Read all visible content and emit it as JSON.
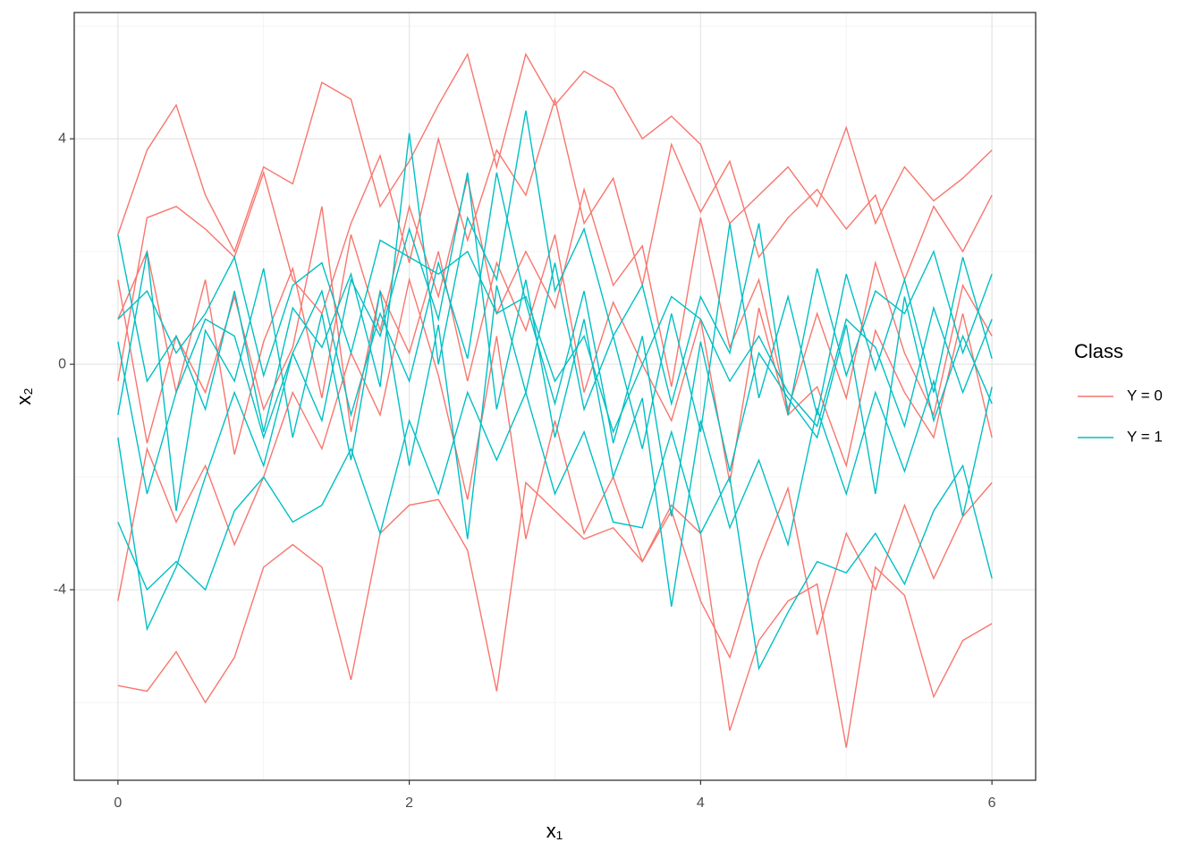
{
  "chart_data": {
    "type": "line",
    "xlabel": "x₁",
    "ylabel": "x₂",
    "legend_title": "Class",
    "legend_position": "right",
    "grid": true,
    "xlim": [
      -0.3,
      6.3
    ],
    "ylim": [
      -7.38,
      6.24
    ],
    "xticks": [
      0,
      2,
      4,
      6
    ],
    "yticks": [
      -4,
      0,
      4
    ],
    "xminor": [
      1,
      3,
      5
    ],
    "yminor": [
      -6,
      -2,
      2,
      6
    ],
    "x": [
      0,
      0.2,
      0.4,
      0.6,
      0.8,
      1,
      1.2,
      1.4,
      1.6,
      1.8,
      2,
      2.2,
      2.4,
      2.6,
      2.8,
      3,
      3.2,
      3.4,
      3.6,
      3.8,
      4,
      4.2,
      4.4,
      4.6,
      4.8,
      5,
      5.2,
      5.4,
      5.6,
      5.8,
      6
    ],
    "series": [
      {
        "name": "Y = 0",
        "color": "#f8766d",
        "values": [
          2.3,
          3.8,
          4.6,
          3.0,
          2.0,
          3.5,
          3.2,
          5.0,
          4.7,
          2.8,
          3.6,
          4.6,
          5.5,
          3.5,
          5.5,
          4.6,
          5.2,
          4.9,
          4.0,
          4.4,
          3.9,
          2.5,
          3.0,
          3.5,
          2.8,
          4.2,
          2.5,
          3.5,
          2.9,
          3.3,
          3.8
        ]
      },
      {
        "name": "Y = 0",
        "color": "#f8766d",
        "values": [
          -5.7,
          -5.8,
          -5.1,
          -6.0,
          -5.2,
          -3.6,
          -3.2,
          -3.6,
          -5.6,
          -3.0,
          -2.5,
          -2.4,
          -3.3,
          -5.8,
          -2.1,
          -2.6,
          -3.1,
          -2.9,
          -3.5,
          -2.5,
          -3.0,
          -6.5,
          -4.9,
          -4.2,
          -3.9,
          -6.8,
          -3.6,
          -4.1,
          -5.9,
          -4.9,
          -4.6
        ]
      },
      {
        "name": "Y = 0",
        "color": "#f8766d",
        "values": [
          1.5,
          -1.4,
          0.5,
          -0.5,
          1.2,
          -0.8,
          0.3,
          2.8,
          -1.2,
          1.3,
          0.2,
          2.0,
          -0.3,
          1.8,
          0.6,
          2.3,
          -0.5,
          1.1,
          0,
          -1.0,
          0.8,
          -2.1,
          1.0,
          -0.9,
          -0.4,
          -1.8,
          0.6,
          -0.5,
          -1.3,
          0.9,
          -1.3
        ]
      },
      {
        "name": "Y = 0",
        "color": "#f8766d",
        "values": [
          -4.2,
          -1.5,
          -2.8,
          -1.8,
          -3.2,
          -2.0,
          -0.5,
          -1.5,
          0.2,
          -0.9,
          1.5,
          -0.2,
          -2.4,
          0.5,
          -3.1,
          -1.0,
          -3.0,
          -2.0,
          -3.5,
          -2.6,
          -4.2,
          -5.2,
          -3.5,
          -2.2,
          -4.8,
          -3.0,
          -4.0,
          -2.5,
          -3.8,
          -2.7,
          -2.1
        ]
      },
      {
        "name": "Y = 0",
        "color": "#f8766d",
        "values": [
          0.8,
          2.0,
          -0.5,
          1.5,
          -1.6,
          0.4,
          1.7,
          -0.6,
          2.3,
          0.6,
          2.8,
          1.2,
          3.3,
          0.9,
          2.0,
          1.0,
          3.1,
          1.4,
          2.1,
          -0.4,
          2.6,
          0.3,
          1.5,
          -0.8,
          0.9,
          -0.6,
          1.8,
          0.2,
          -0.9,
          1.4,
          0.5
        ]
      },
      {
        "name": "Y = 0",
        "color": "#f8766d",
        "values": [
          -0.3,
          2.6,
          2.8,
          2.4,
          1.9,
          3.4,
          1.5,
          0.9,
          2.5,
          3.7,
          1.8,
          4.0,
          2.2,
          3.8,
          3.0,
          4.7,
          2.5,
          3.3,
          1.4,
          3.9,
          2.7,
          3.6,
          1.9,
          2.6,
          3.1,
          2.4,
          3.0,
          1.5,
          2.8,
          2.0,
          3.0
        ]
      },
      {
        "name": "Y = 1",
        "color": "#00bfc4",
        "values": [
          2.3,
          -0.3,
          0.5,
          -0.8,
          1.3,
          -1.2,
          1.0,
          0.3,
          1.6,
          -0.4,
          4.1,
          0,
          2.6,
          1.5,
          4.5,
          1.3,
          2.4,
          0.5,
          1.4,
          -0.7,
          1.2,
          0.2,
          2.5,
          -0.9,
          1.7,
          -0.2,
          1.3,
          0.9,
          2.0,
          0.2,
          1.6
        ]
      },
      {
        "name": "Y = 1",
        "color": "#00bfc4",
        "values": [
          -2.8,
          -4.0,
          -3.5,
          -4.0,
          -2.6,
          -2.0,
          -2.8,
          -2.5,
          -1.5,
          -3.0,
          -1.0,
          -2.3,
          -0.5,
          -1.7,
          -0.5,
          -2.3,
          -1.2,
          -2.8,
          -2.9,
          -1.2,
          -3.0,
          -2.0,
          -5.4,
          -4.4,
          -3.5,
          -3.7,
          -3.0,
          -3.9,
          -2.6,
          -1.8,
          -3.8
        ]
      },
      {
        "name": "Y = 1",
        "color": "#00bfc4",
        "values": [
          -1.3,
          -4.7,
          -3.6,
          -2.0,
          -0.5,
          -1.8,
          0.2,
          -1.0,
          1.5,
          0.5,
          2.4,
          0.8,
          3.4,
          -0.8,
          1.5,
          -1.3,
          0.8,
          -2.0,
          -0.6,
          -4.3,
          -1.0,
          -2.9,
          -1.7,
          -3.2,
          -0.8,
          -2.3,
          -0.5,
          -1.9,
          -0.3,
          -2.7,
          -0.4
        ]
      },
      {
        "name": "Y = 1",
        "color": "#00bfc4",
        "values": [
          0.8,
          1.3,
          0.2,
          0.9,
          1.9,
          -0.2,
          1.4,
          1.8,
          0.2,
          2.2,
          1.9,
          1.6,
          2.0,
          0.9,
          1.2,
          -0.3,
          0.5,
          -1.2,
          0,
          1.2,
          0.8,
          -0.3,
          0.5,
          -0.5,
          -1.1,
          0.8,
          0.3,
          -1.1,
          1.0,
          -0.5,
          0.8
        ]
      },
      {
        "name": "Y = 1",
        "color": "#00bfc4",
        "values": [
          -0.9,
          2.0,
          -2.6,
          0.6,
          -0.3,
          1.7,
          -1.3,
          0.9,
          -1.7,
          1.3,
          -1.8,
          0.7,
          -3.1,
          1.4,
          -0.5,
          1.8,
          -0.8,
          0.5,
          -1.5,
          0.9,
          -1.2,
          2.5,
          -0.6,
          1.2,
          -0.9,
          1.6,
          -0.1,
          1.5,
          -0.5,
          1.9,
          0.1
        ]
      },
      {
        "name": "Y = 1",
        "color": "#00bfc4",
        "values": [
          0.4,
          -2.3,
          -0.5,
          0.8,
          0.5,
          -1.3,
          0.2,
          1.3,
          -0.9,
          0.9,
          -0.3,
          1.8,
          0.1,
          3.4,
          1.1,
          -0.7,
          1.3,
          -1.4,
          0.5,
          -2.7,
          0.4,
          -1.9,
          0.2,
          -0.6,
          -1.3,
          0.7,
          -2.3,
          1.2,
          -1.0,
          0.5,
          -0.7
        ]
      }
    ]
  }
}
